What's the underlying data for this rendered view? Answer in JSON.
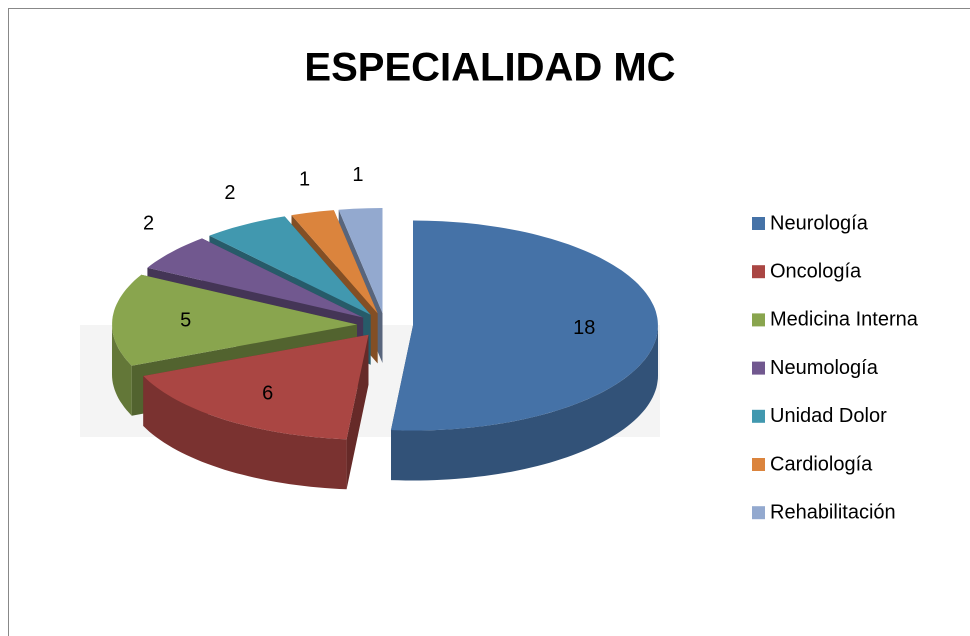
{
  "chart_data": {
    "type": "pie3d",
    "title": "ESPECIALIDAD MC",
    "categories": [
      "Neurología",
      "Oncología",
      "Medicina Interna",
      "Neumología",
      "Unidad Dolor",
      "Cardiología",
      "Rehabilitación"
    ],
    "values": [
      18,
      6,
      5,
      2,
      2,
      1,
      1
    ],
    "colors": [
      "#4572a7",
      "#aa4643",
      "#89a54e",
      "#71588f",
      "#4198af",
      "#db843d",
      "#93a9cf"
    ],
    "legend": "right"
  }
}
